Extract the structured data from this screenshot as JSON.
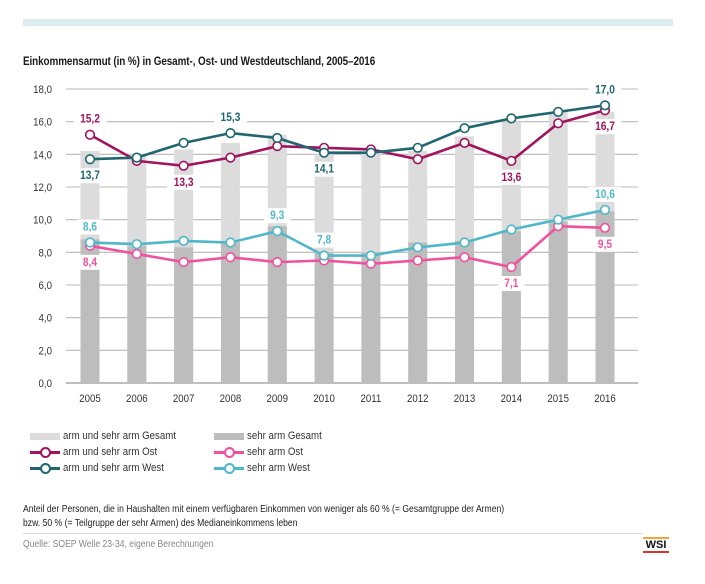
{
  "header": {
    "title": "Einkommensarmut (in %) in Gesamt-, Ost- und Westdeutschland, 2005–2016"
  },
  "chart_data": {
    "type": "bar+line",
    "title": "Einkommensarmut (in %) in Gesamt-, Ost- und Westdeutschland, 2005–2016",
    "xlabel": "",
    "ylabel": "",
    "ylim": [
      0,
      18
    ],
    "yticks": [
      "0,0",
      "2,0",
      "4,0",
      "6,0",
      "8,0",
      "10,0",
      "12,0",
      "14,0",
      "16,0",
      "18,0"
    ],
    "ytick_values": [
      0,
      2,
      4,
      6,
      8,
      10,
      12,
      14,
      16,
      18
    ],
    "grid": true,
    "categories": [
      "2005",
      "2006",
      "2007",
      "2008",
      "2009",
      "2010",
      "2011",
      "2012",
      "2013",
      "2014",
      "2015",
      "2016"
    ],
    "bars": [
      {
        "name": "arm und sehr arm Gesamt",
        "color": "#dcdcdc",
        "values": [
          14.2,
          14.0,
          14.3,
          14.7,
          15.2,
          14.0,
          14.1,
          14.2,
          15.1,
          16.0,
          16.6,
          16.6
        ]
      },
      {
        "name": "sehr arm Gesamt",
        "color": "#bdbdbd",
        "values": [
          8.8,
          8.4,
          8.3,
          8.6,
          9.6,
          8.0,
          8.0,
          8.6,
          8.7,
          9.3,
          9.9,
          10.5
        ]
      }
    ],
    "series": [
      {
        "name": "arm und sehr arm Ost",
        "color": "#a0145f",
        "values": [
          15.2,
          13.6,
          13.3,
          13.8,
          14.5,
          14.4,
          14.3,
          13.7,
          14.7,
          13.6,
          15.9,
          16.7
        ],
        "labels": [
          {
            "index": 0,
            "text": "15,2",
            "pos": "above"
          },
          {
            "index": 2,
            "text": "13,3",
            "pos": "below"
          },
          {
            "index": 9,
            "text": "13,6",
            "pos": "below"
          },
          {
            "index": 11,
            "text": "16,7",
            "pos": "below"
          }
        ]
      },
      {
        "name": "arm und sehr arm West",
        "color": "#1f6670",
        "values": [
          13.7,
          13.8,
          14.7,
          15.3,
          15.0,
          14.1,
          14.1,
          14.4,
          15.6,
          16.2,
          16.6,
          17.0
        ],
        "labels": [
          {
            "index": 0,
            "text": "13,7",
            "pos": "below"
          },
          {
            "index": 3,
            "text": "15,3",
            "pos": "above"
          },
          {
            "index": 5,
            "text": "14,1",
            "pos": "below"
          },
          {
            "index": 11,
            "text": "17,0",
            "pos": "above"
          }
        ]
      },
      {
        "name": "sehr arm Ost",
        "color": "#f0519f",
        "values": [
          8.4,
          7.9,
          7.4,
          7.7,
          7.4,
          7.5,
          7.3,
          7.5,
          7.7,
          7.1,
          9.6,
          9.5
        ],
        "labels": [
          {
            "index": 0,
            "text": "8,4",
            "pos": "below"
          },
          {
            "index": 9,
            "text": "7,1",
            "pos": "below"
          },
          {
            "index": 11,
            "text": "9,5",
            "pos": "below"
          }
        ]
      },
      {
        "name": "sehr arm West",
        "color": "#4fb8c8",
        "values": [
          8.6,
          8.5,
          8.7,
          8.6,
          9.3,
          7.8,
          7.8,
          8.3,
          8.6,
          9.4,
          10.0,
          10.6
        ],
        "labels": [
          {
            "index": 0,
            "text": "8,6",
            "pos": "above"
          },
          {
            "index": 4,
            "text": "9,3",
            "pos": "above"
          },
          {
            "index": 5,
            "text": "7,8",
            "pos": "above"
          },
          {
            "index": 11,
            "text": "10,6",
            "pos": "above"
          }
        ]
      }
    ],
    "legend_position": "bottom-left"
  },
  "legend": {
    "items": [
      {
        "label": "arm und sehr arm Gesamt",
        "kind": "bar",
        "color": "#dcdcdc"
      },
      {
        "label": "sehr arm Gesamt",
        "kind": "bar",
        "color": "#bdbdbd"
      },
      {
        "label": "arm und sehr arm Ost",
        "kind": "line",
        "color": "#a0145f"
      },
      {
        "label": "sehr arm Ost",
        "kind": "line",
        "color": "#f0519f"
      },
      {
        "label": "arm und sehr arm West",
        "kind": "line",
        "color": "#1f6670"
      },
      {
        "label": "sehr arm West",
        "kind": "line",
        "color": "#4fb8c8"
      }
    ]
  },
  "footer": {
    "note_line1": "Anteil der Personen, die in Haushalten mit einem verfügbaren Einkommen von weniger als 60 % (= Gesamtgruppe der Armen)",
    "note_line2": "bzw. 50 % (= Teilgruppe der sehr Armen) des Medianeinkommens leben",
    "source": "Quelle: SOEP Welle 23-34, eigene Berechnungen",
    "logo": "WSI"
  }
}
